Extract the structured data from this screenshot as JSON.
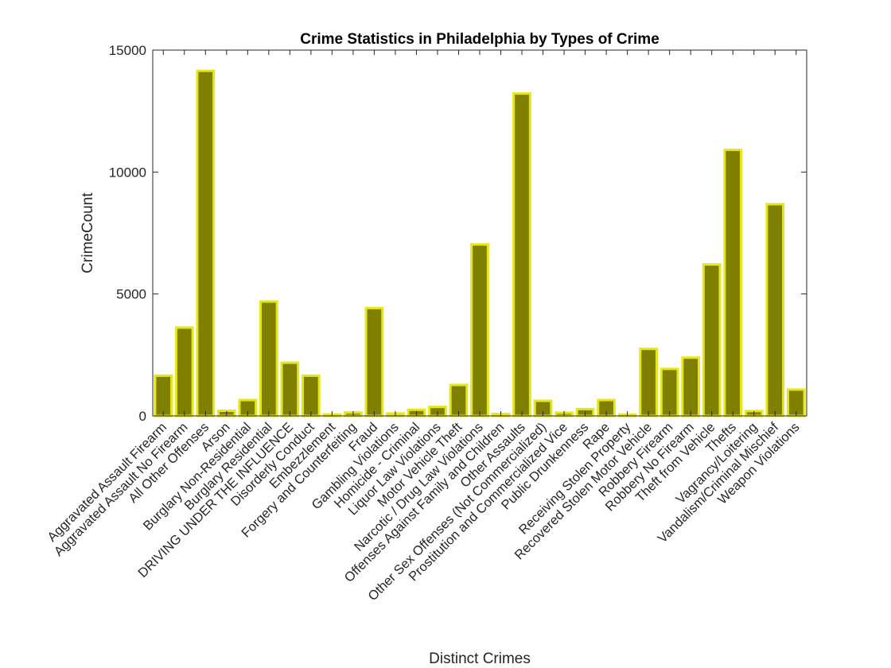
{
  "chart_data": {
    "type": "bar",
    "title": "Crime Statistics in Philadelphia by Types of Crime",
    "xlabel": "Distinct Crimes",
    "ylabel": "CrimeCount",
    "ylim": [
      0,
      15000
    ],
    "yticks": [
      0,
      5000,
      10000,
      15000
    ],
    "grid": false,
    "categories": [
      "Aggravated Assault Firearm",
      "Aggravated Assault No Firearm",
      "All Other Offenses",
      "Arson",
      "Burglary Non-Residential",
      "Burglary Residential",
      "DRIVING UNDER THE INFLUENCE",
      "Disorderly Conduct",
      "Embezzlement",
      "Forgery and Counterfeiting",
      "Fraud",
      "Gambling Violations",
      "Homicide - Criminal",
      "Liquor Law Violations",
      "Motor Vehicle Theft",
      "Narcotic / Drug Law Violations",
      "Offenses Against Family and Children",
      "Other Assaults",
      "Other Sex Offenses (Not Commercialized)",
      "Prostitution and Commercialized Vice",
      "Public Drunkenness",
      "Rape",
      "Receiving Stolen Property",
      "Recovered Stolen Motor Vehicle",
      "Robbery Firearm",
      "Robbery No Firearm",
      "Theft from Vehicle",
      "Thefts",
      "Vagrancy/Loitering",
      "Vandalism/Criminal Mischief",
      "Weapon Violations"
    ],
    "values": [
      1650,
      3620,
      14150,
      210,
      650,
      4690,
      2180,
      1650,
      60,
      140,
      4420,
      100,
      250,
      370,
      1270,
      7030,
      80,
      13220,
      620,
      130,
      280,
      650,
      50,
      2750,
      1930,
      2390,
      6210,
      10910,
      200,
      8680,
      1080
    ],
    "colors": {
      "bar_fill": "#808000",
      "bar_edge": "#e6e619",
      "axis": "#262626"
    }
  }
}
